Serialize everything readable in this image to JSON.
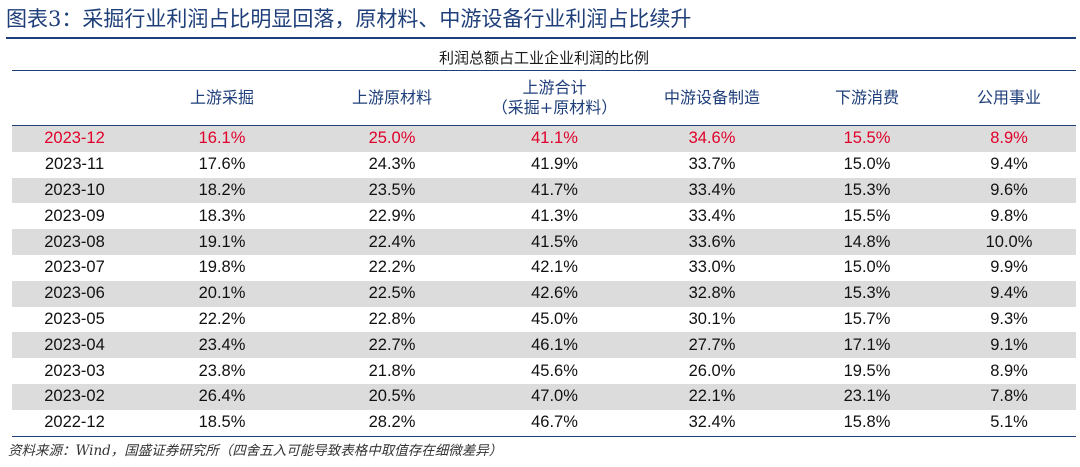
{
  "figure": {
    "title": "图表3：采掘行业利润占比明显回落，原材料、中游设备行业利润占比续升"
  },
  "table": {
    "caption": "利润总额占工业企业利润的比例",
    "headers": [
      "",
      "上游采掘",
      "上游原材料",
      "上游合计\n（采掘+原材料）",
      "中游设备制造",
      "下游消费",
      "公用事业"
    ],
    "rows": [
      {
        "period": "2023-12",
        "values": [
          "16.1%",
          "25.0%",
          "41.1%",
          "34.6%",
          "15.5%",
          "8.9%"
        ],
        "highlight": true
      },
      {
        "period": "2023-11",
        "values": [
          "17.6%",
          "24.3%",
          "41.9%",
          "33.7%",
          "15.0%",
          "9.4%"
        ]
      },
      {
        "period": "2023-10",
        "values": [
          "18.2%",
          "23.5%",
          "41.7%",
          "33.4%",
          "15.3%",
          "9.6%"
        ]
      },
      {
        "period": "2023-09",
        "values": [
          "18.3%",
          "22.9%",
          "41.3%",
          "33.4%",
          "15.5%",
          "9.8%"
        ]
      },
      {
        "period": "2023-08",
        "values": [
          "19.1%",
          "22.4%",
          "41.5%",
          "33.6%",
          "14.8%",
          "10.0%"
        ]
      },
      {
        "period": "2023-07",
        "values": [
          "19.8%",
          "22.2%",
          "42.1%",
          "33.0%",
          "15.0%",
          "9.9%"
        ]
      },
      {
        "period": "2023-06",
        "values": [
          "20.1%",
          "22.5%",
          "42.6%",
          "32.8%",
          "15.3%",
          "9.4%"
        ]
      },
      {
        "period": "2023-05",
        "values": [
          "22.2%",
          "22.8%",
          "45.0%",
          "30.1%",
          "15.7%",
          "9.3%"
        ]
      },
      {
        "period": "2023-04",
        "values": [
          "23.4%",
          "22.7%",
          "46.1%",
          "27.7%",
          "17.1%",
          "9.1%"
        ]
      },
      {
        "period": "2023-03",
        "values": [
          "23.8%",
          "21.8%",
          "45.6%",
          "26.0%",
          "19.5%",
          "8.9%"
        ]
      },
      {
        "period": "2023-02",
        "values": [
          "26.4%",
          "20.5%",
          "47.0%",
          "22.1%",
          "23.1%",
          "7.8%"
        ]
      },
      {
        "period": "2022-12",
        "values": [
          "18.5%",
          "28.2%",
          "46.7%",
          "32.4%",
          "15.8%",
          "5.1%"
        ]
      }
    ]
  },
  "source": "资料来源：Wind，国盛证券研究所（四舍五入可能导致表格中取值存在细微差异）",
  "colors": {
    "accent": "#1f3f7a",
    "highlight_text": "#e0002a",
    "row_shade": "#dcdcdc"
  }
}
